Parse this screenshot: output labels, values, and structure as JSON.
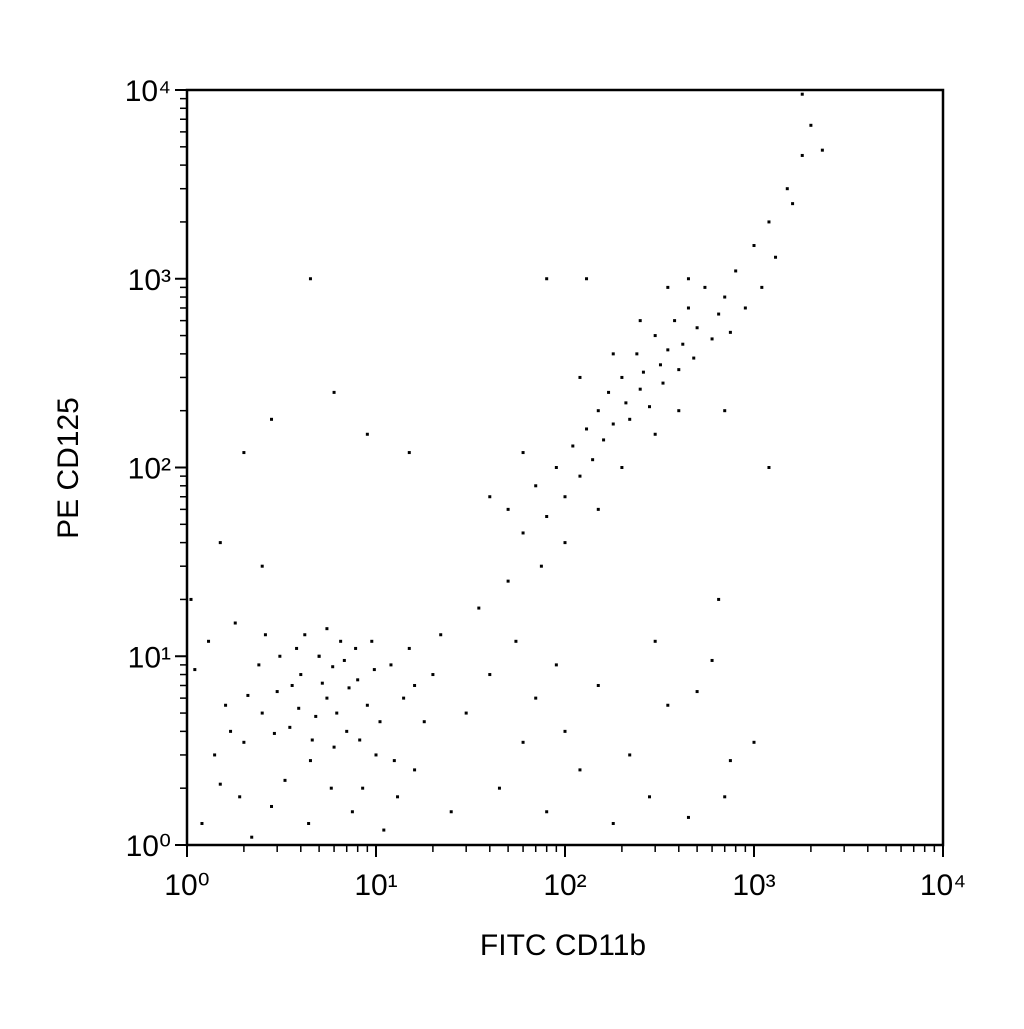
{
  "chart_data": {
    "type": "scatter",
    "x_label": "FITC CD11b",
    "y_label": "PE CD125",
    "color": "#000000",
    "log_scale": true,
    "xlim": [
      1,
      10000
    ],
    "ylim": [
      1,
      10000
    ],
    "xticks": [
      {
        "value": 1,
        "label": "10⁰"
      },
      {
        "value": 10,
        "label": "10¹"
      },
      {
        "value": 100,
        "label": "10²"
      },
      {
        "value": 1000,
        "label": "10³"
      },
      {
        "value": 10000,
        "label": "10⁴"
      }
    ],
    "yticks": [
      {
        "value": 1,
        "label": "10⁰"
      },
      {
        "value": 10,
        "label": "10¹"
      },
      {
        "value": 100,
        "label": "10²"
      },
      {
        "value": 1000,
        "label": "10³"
      },
      {
        "value": 10000,
        "label": "10⁴"
      }
    ],
    "minor_ticks": [
      2,
      3,
      4,
      5,
      6,
      7,
      8,
      9,
      20,
      30,
      40,
      50,
      60,
      70,
      80,
      90,
      200,
      300,
      400,
      500,
      600,
      700,
      800,
      900,
      2000,
      3000,
      4000,
      5000,
      6000,
      7000,
      8000,
      9000
    ],
    "x": [
      1.2,
      1.5,
      2.0,
      2.5,
      3.0,
      3.5,
      4.0,
      4.5,
      5.0,
      5.5,
      6.0,
      7.0,
      8.0,
      9.0,
      10,
      12,
      14,
      16,
      18,
      1.1,
      1.3,
      1.8,
      2.2,
      2.8,
      3.3,
      3.8,
      4.2,
      5.5,
      6.5,
      7.5,
      8.5,
      11,
      13,
      15,
      20,
      1.6,
      2.4,
      3.6,
      4.8,
      5.8,
      6.8,
      9.5,
      1.4,
      2.1,
      2.9,
      3.9,
      4.4,
      5.2,
      6.2,
      7.2,
      8.2,
      9.8,
      1.05,
      1.9,
      2.6,
      3.1,
      4.6,
      5.9,
      7.8,
      10.5,
      12.5,
      16,
      22,
      25,
      1.7,
      30,
      40,
      45,
      55,
      60,
      70,
      80,
      90,
      100,
      120,
      150,
      180,
      220,
      280,
      350,
      450,
      600,
      650,
      700,
      1000,
      750,
      500,
      300,
      35,
      50,
      50,
      60,
      70,
      80,
      90,
      100,
      110,
      120,
      130,
      140,
      150,
      160,
      170,
      180,
      200,
      210,
      220,
      240,
      250,
      260,
      280,
      300,
      320,
      330,
      350,
      380,
      400,
      420,
      450,
      480,
      500,
      550,
      600,
      650,
      700,
      750,
      800,
      900,
      1000,
      1100,
      1200,
      1300,
      1500,
      1800,
      2000,
      1600,
      150,
      200,
      100,
      120,
      300,
      400,
      450,
      250,
      180,
      700,
      60,
      40,
      75,
      350,
      4.5,
      80,
      1800,
      2.8,
      2.0,
      6.0,
      9.0,
      15,
      1.5,
      2.5,
      2300,
      1200,
      130,
      5.0
    ],
    "values": [
      1.3,
      2.1,
      3.5,
      5.0,
      6.5,
      4.2,
      8.0,
      2.8,
      10,
      6.0,
      3.3,
      4.0,
      7.5,
      5.5,
      3.0,
      9.0,
      6.0,
      2.5,
      4.5,
      8.5,
      12,
      15,
      1.1,
      1.6,
      2.2,
      11,
      13,
      14,
      12,
      1.5,
      2.0,
      1.2,
      1.8,
      11,
      8.0,
      5.5,
      9.0,
      7.0,
      4.8,
      2.0,
      9.5,
      12,
      3.0,
      6.2,
      3.9,
      5.3,
      1.3,
      7.2,
      5.0,
      6.8,
      3.6,
      8.5,
      20,
      1.8,
      13,
      10,
      3.6,
      8.8,
      11,
      4.5,
      2.8,
      7.0,
      13,
      1.5,
      4.0,
      5,
      8,
      2,
      12,
      3.5,
      6,
      1.5,
      9,
      4,
      2.5,
      7,
      1.3,
      3,
      1.8,
      5.5,
      1.4,
      9.5,
      20,
      1.8,
      3.5,
      2.8,
      6.5,
      12,
      18,
      25,
      60,
      45,
      80,
      55,
      100,
      70,
      130,
      90,
      160,
      110,
      200,
      140,
      250,
      170,
      300,
      220,
      180,
      400,
      260,
      320,
      210,
      500,
      350,
      280,
      420,
      600,
      330,
      450,
      700,
      380,
      550,
      900,
      480,
      650,
      800,
      520,
      1100,
      700,
      1500,
      900,
      2000,
      1300,
      3000,
      4500,
      6500,
      2500,
      60,
      100,
      40,
      300,
      150,
      200,
      1000,
      600,
      400,
      200,
      120,
      70,
      30,
      900,
      1000,
      1000,
      9500,
      180,
      120,
      250,
      150,
      120,
      40,
      30,
      4800,
      100,
      1000,
      10
    ]
  }
}
